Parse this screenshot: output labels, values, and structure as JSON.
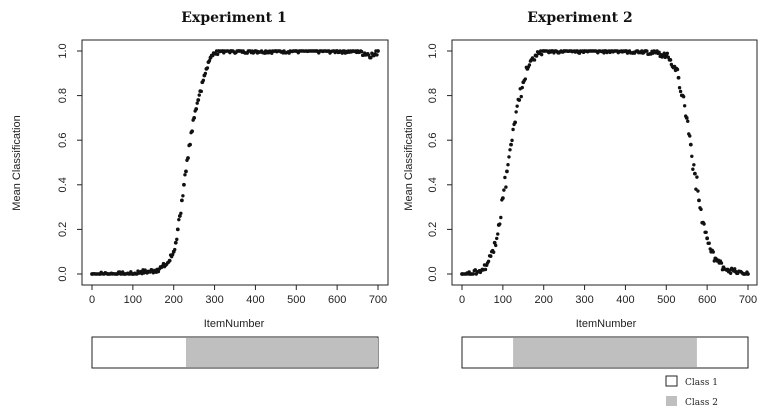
{
  "figure": {
    "legend": [
      {
        "label": "Class 1",
        "color": "#ffffff"
      },
      {
        "label": "Class 2",
        "color": "#bfbfbf"
      }
    ]
  },
  "chart_data": [
    {
      "type": "scatter",
      "title": "Experiment 1",
      "xlabel": "ItemNumber",
      "ylabel": "Mean Classification",
      "xlim": [
        0,
        700
      ],
      "ylim": [
        0,
        1
      ],
      "xticks": [
        "0",
        "100",
        "200",
        "300",
        "400",
        "500",
        "600",
        "700"
      ],
      "yticks": [
        "0.0",
        "0.2",
        "0.4",
        "0.6",
        "0.8",
        "1.0"
      ],
      "marker_color": "#111111",
      "series": [
        {
          "x": [
            0,
            20,
            40,
            60,
            80,
            100,
            120,
            140,
            160,
            170,
            180,
            190,
            200,
            205,
            210,
            215,
            220,
            225,
            230,
            235,
            240,
            245,
            250,
            255,
            260,
            265,
            270,
            275,
            280,
            285,
            290,
            295,
            300,
            310,
            320,
            340,
            360,
            400,
            450,
            500,
            550,
            600,
            650,
            690,
            700
          ],
          "y": [
            0.0,
            0.0,
            0.0,
            0.0,
            0.0,
            0.0,
            0.01,
            0.01,
            0.02,
            0.03,
            0.04,
            0.06,
            0.1,
            0.14,
            0.2,
            0.26,
            0.33,
            0.4,
            0.46,
            0.52,
            0.58,
            0.64,
            0.7,
            0.74,
            0.78,
            0.82,
            0.86,
            0.89,
            0.92,
            0.95,
            0.97,
            0.98,
            0.99,
            1.0,
            1.0,
            1.0,
            1.0,
            1.0,
            1.0,
            1.0,
            1.0,
            1.0,
            1.0,
            0.98,
            1.0
          ]
        }
      ],
      "class_bar": {
        "class1_range": [
          0,
          230
        ],
        "class2_range": [
          230,
          700
        ]
      }
    },
    {
      "type": "scatter",
      "title": "Experiment 2",
      "xlabel": "ItemNumber",
      "ylabel": "Mean Classification",
      "xlim": [
        0,
        700
      ],
      "ylim": [
        0,
        1
      ],
      "xticks": [
        "0",
        "100",
        "200",
        "300",
        "400",
        "500",
        "600",
        "700"
      ],
      "yticks": [
        "0.0",
        "0.2",
        "0.4",
        "0.6",
        "0.8",
        "1.0"
      ],
      "marker_color": "#111111",
      "series": [
        {
          "x": [
            0,
            20,
            40,
            50,
            60,
            70,
            80,
            90,
            100,
            110,
            120,
            130,
            140,
            150,
            160,
            170,
            180,
            190,
            200,
            220,
            250,
            300,
            350,
            400,
            450,
            480,
            500,
            510,
            520,
            530,
            540,
            550,
            560,
            570,
            580,
            590,
            600,
            610,
            620,
            630,
            640,
            650,
            670,
            690,
            700
          ],
          "y": [
            0.0,
            0.0,
            0.01,
            0.02,
            0.04,
            0.08,
            0.14,
            0.22,
            0.34,
            0.46,
            0.58,
            0.68,
            0.78,
            0.86,
            0.92,
            0.96,
            0.98,
            0.99,
            1.0,
            1.0,
            1.0,
            1.0,
            1.0,
            1.0,
            1.0,
            0.99,
            0.98,
            0.96,
            0.93,
            0.88,
            0.8,
            0.7,
            0.58,
            0.45,
            0.33,
            0.23,
            0.16,
            0.1,
            0.07,
            0.05,
            0.03,
            0.02,
            0.01,
            0.0,
            0.0
          ]
        }
      ],
      "class_bar": {
        "class1_range": [
          0,
          125
        ],
        "class2_range": [
          125,
          575
        ],
        "class1_range_2": [
          575,
          700
        ]
      }
    }
  ]
}
